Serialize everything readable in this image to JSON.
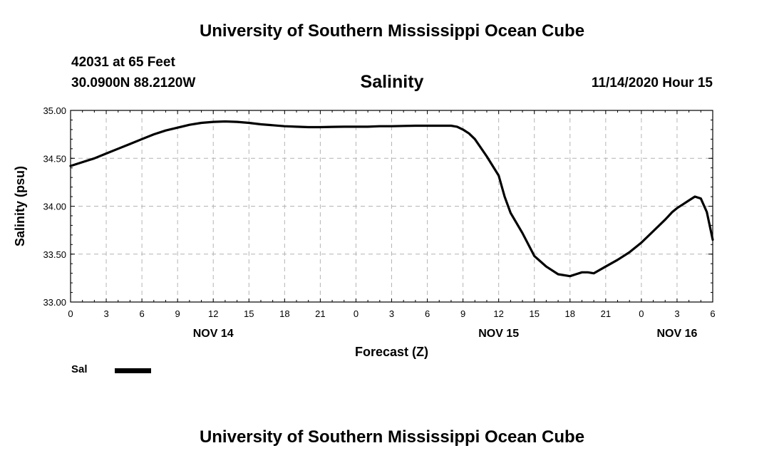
{
  "header": {
    "title": "University of Southern Mississippi Ocean Cube",
    "station": "42031 at 65 Feet",
    "coords": "30.0900N 88.2120W",
    "variable": "Salinity",
    "datetime": "11/14/2020 Hour 15"
  },
  "footer": {
    "title": "University of Southern Mississippi Ocean Cube"
  },
  "legend": {
    "label": "Sal",
    "color": "#000000"
  },
  "chart_data": {
    "type": "line",
    "title": "Salinity",
    "xlabel": "Forecast (Z)",
    "ylabel": "Salinity (psu)",
    "xlim": [
      0,
      54
    ],
    "ylim": [
      33.0,
      35.0
    ],
    "yticks": [
      33.0,
      33.5,
      34.0,
      34.5,
      35.0
    ],
    "ytick_labels": [
      "33.00",
      "33.50",
      "34.00",
      "34.50",
      "35.00"
    ],
    "xticks": [
      0,
      3,
      6,
      9,
      12,
      15,
      18,
      21,
      24,
      27,
      30,
      33,
      36,
      39,
      42,
      45,
      48,
      51,
      54
    ],
    "xtick_labels": [
      "0",
      "3",
      "6",
      "9",
      "12",
      "15",
      "18",
      "21",
      "0",
      "3",
      "6",
      "9",
      "12",
      "15",
      "18",
      "21",
      "0",
      "3",
      "6"
    ],
    "day_labels": [
      {
        "x": 12,
        "label": "NOV 14"
      },
      {
        "x": 36,
        "label": "NOV 15"
      },
      {
        "x": 51,
        "label": "NOV 16"
      }
    ],
    "grid": true,
    "series": [
      {
        "name": "Sal",
        "color": "#000000",
        "x": [
          0,
          1,
          2,
          3,
          4,
          5,
          6,
          7,
          8,
          9,
          10,
          11,
          12,
          13,
          14,
          15,
          16,
          17,
          18,
          19,
          20,
          21,
          22,
          23,
          24,
          25,
          26,
          27,
          28,
          29,
          30,
          31,
          32,
          32.5,
          33,
          33.5,
          34,
          35,
          36,
          36.5,
          37,
          38,
          39,
          40,
          41,
          42,
          42.5,
          43,
          43.5,
          44,
          45,
          46,
          47,
          48,
          49,
          50,
          50.3,
          50.6,
          51,
          51.5,
          52,
          52.5,
          53,
          53.5,
          54
        ],
        "values": [
          34.42,
          34.46,
          34.5,
          34.55,
          34.6,
          34.65,
          34.7,
          34.75,
          34.79,
          34.82,
          34.85,
          34.87,
          34.88,
          34.885,
          34.88,
          34.87,
          34.855,
          34.845,
          34.835,
          34.83,
          34.825,
          34.825,
          34.828,
          34.83,
          34.83,
          34.83,
          34.835,
          34.835,
          34.838,
          34.84,
          34.84,
          34.84,
          34.84,
          34.83,
          34.8,
          34.76,
          34.7,
          34.52,
          34.32,
          34.1,
          33.93,
          33.72,
          33.48,
          33.37,
          33.29,
          33.27,
          33.29,
          33.31,
          33.31,
          33.3,
          33.37,
          33.44,
          33.52,
          33.62,
          33.74,
          33.86,
          33.9,
          33.94,
          33.98,
          34.02,
          34.06,
          34.1,
          34.08,
          33.94,
          33.65
        ]
      }
    ]
  }
}
